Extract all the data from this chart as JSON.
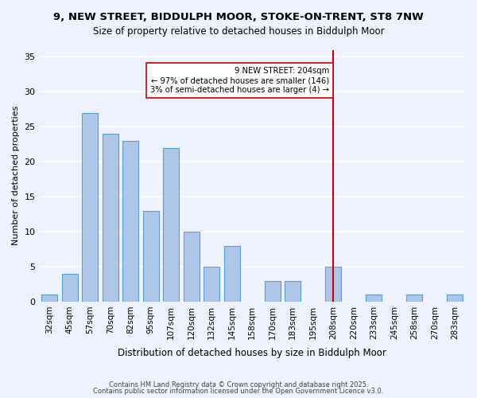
{
  "title_line1": "9, NEW STREET, BIDDULPH MOOR, STOKE-ON-TRENT, ST8 7NW",
  "title_line2": "Size of property relative to detached houses in Biddulph Moor",
  "xlabel": "Distribution of detached houses by size in Biddulph Moor",
  "ylabel": "Number of detached properties",
  "categories": [
    "32sqm",
    "45sqm",
    "57sqm",
    "70sqm",
    "82sqm",
    "95sqm",
    "107sqm",
    "120sqm",
    "132sqm",
    "145sqm",
    "158sqm",
    "170sqm",
    "183sqm",
    "195sqm",
    "208sqm",
    "220sqm",
    "233sqm",
    "245sqm",
    "258sqm",
    "270sqm",
    "283sqm"
  ],
  "values": [
    1,
    4,
    27,
    24,
    23,
    13,
    22,
    10,
    5,
    8,
    0,
    3,
    3,
    0,
    5,
    0,
    1,
    0,
    1,
    0,
    1
  ],
  "bar_color": "#aec6e8",
  "bar_edge_color": "#5a9fd4",
  "vline_x": 14,
  "vline_color": "#cc0000",
  "annotation_box_text": "9 NEW STREET: 204sqm\n← 97% of detached houses are smaller (146)\n3% of semi-detached houses are larger (4) →",
  "ylim": [
    0,
    36
  ],
  "yticks": [
    0,
    5,
    10,
    15,
    20,
    25,
    30,
    35
  ],
  "background_color": "#eef2ff",
  "footer_line1": "Contains HM Land Registry data © Crown copyright and database right 2025.",
  "footer_line2": "Contains public sector information licensed under the Open Government Licence v3.0."
}
